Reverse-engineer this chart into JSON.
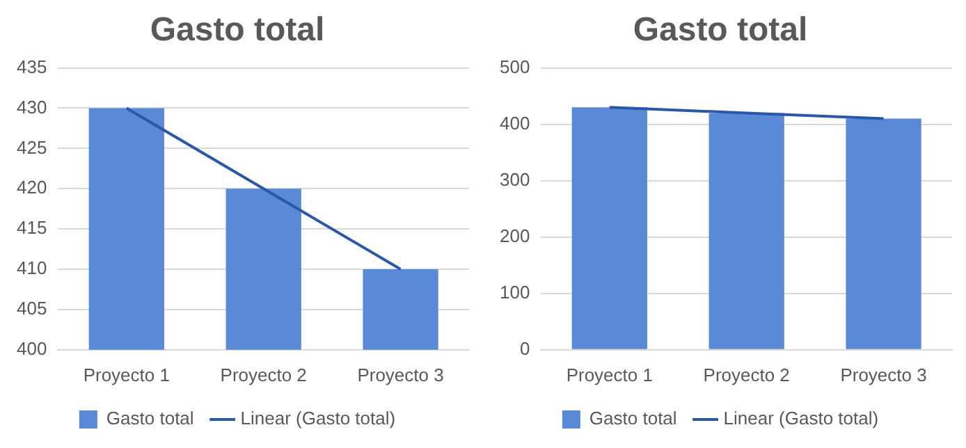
{
  "chart_data": [
    {
      "type": "bar",
      "title": "Gasto total",
      "categories": [
        "Proyecto 1",
        "Proyecto 2",
        "Proyecto 3"
      ],
      "series": [
        {
          "name": "Gasto total",
          "color": "#5a89d8",
          "values": [
            430,
            420,
            410
          ]
        },
        {
          "name": "Linear (Gasto total)",
          "type": "line",
          "color": "#2b57a8",
          "values": [
            430,
            420,
            410
          ],
          "marker": "none"
        }
      ],
      "ylim": [
        400,
        435
      ],
      "yticks": [
        400,
        405,
        410,
        415,
        420,
        425,
        430,
        435
      ],
      "grid": "y",
      "legend": "bottom"
    },
    {
      "type": "bar",
      "title": "Gasto total",
      "categories": [
        "Proyecto 1",
        "Proyecto 2",
        "Proyecto 3"
      ],
      "series": [
        {
          "name": "Gasto total",
          "color": "#5a89d8",
          "values": [
            430,
            420,
            410
          ]
        },
        {
          "name": "Linear (Gasto total)",
          "type": "line",
          "color": "#2b57a8",
          "values": [
            430,
            420,
            410
          ],
          "marker": "none"
        }
      ],
      "ylim": [
        0,
        500
      ],
      "yticks": [
        0,
        100,
        200,
        300,
        400,
        500
      ],
      "grid": "y",
      "legend": "bottom"
    }
  ]
}
